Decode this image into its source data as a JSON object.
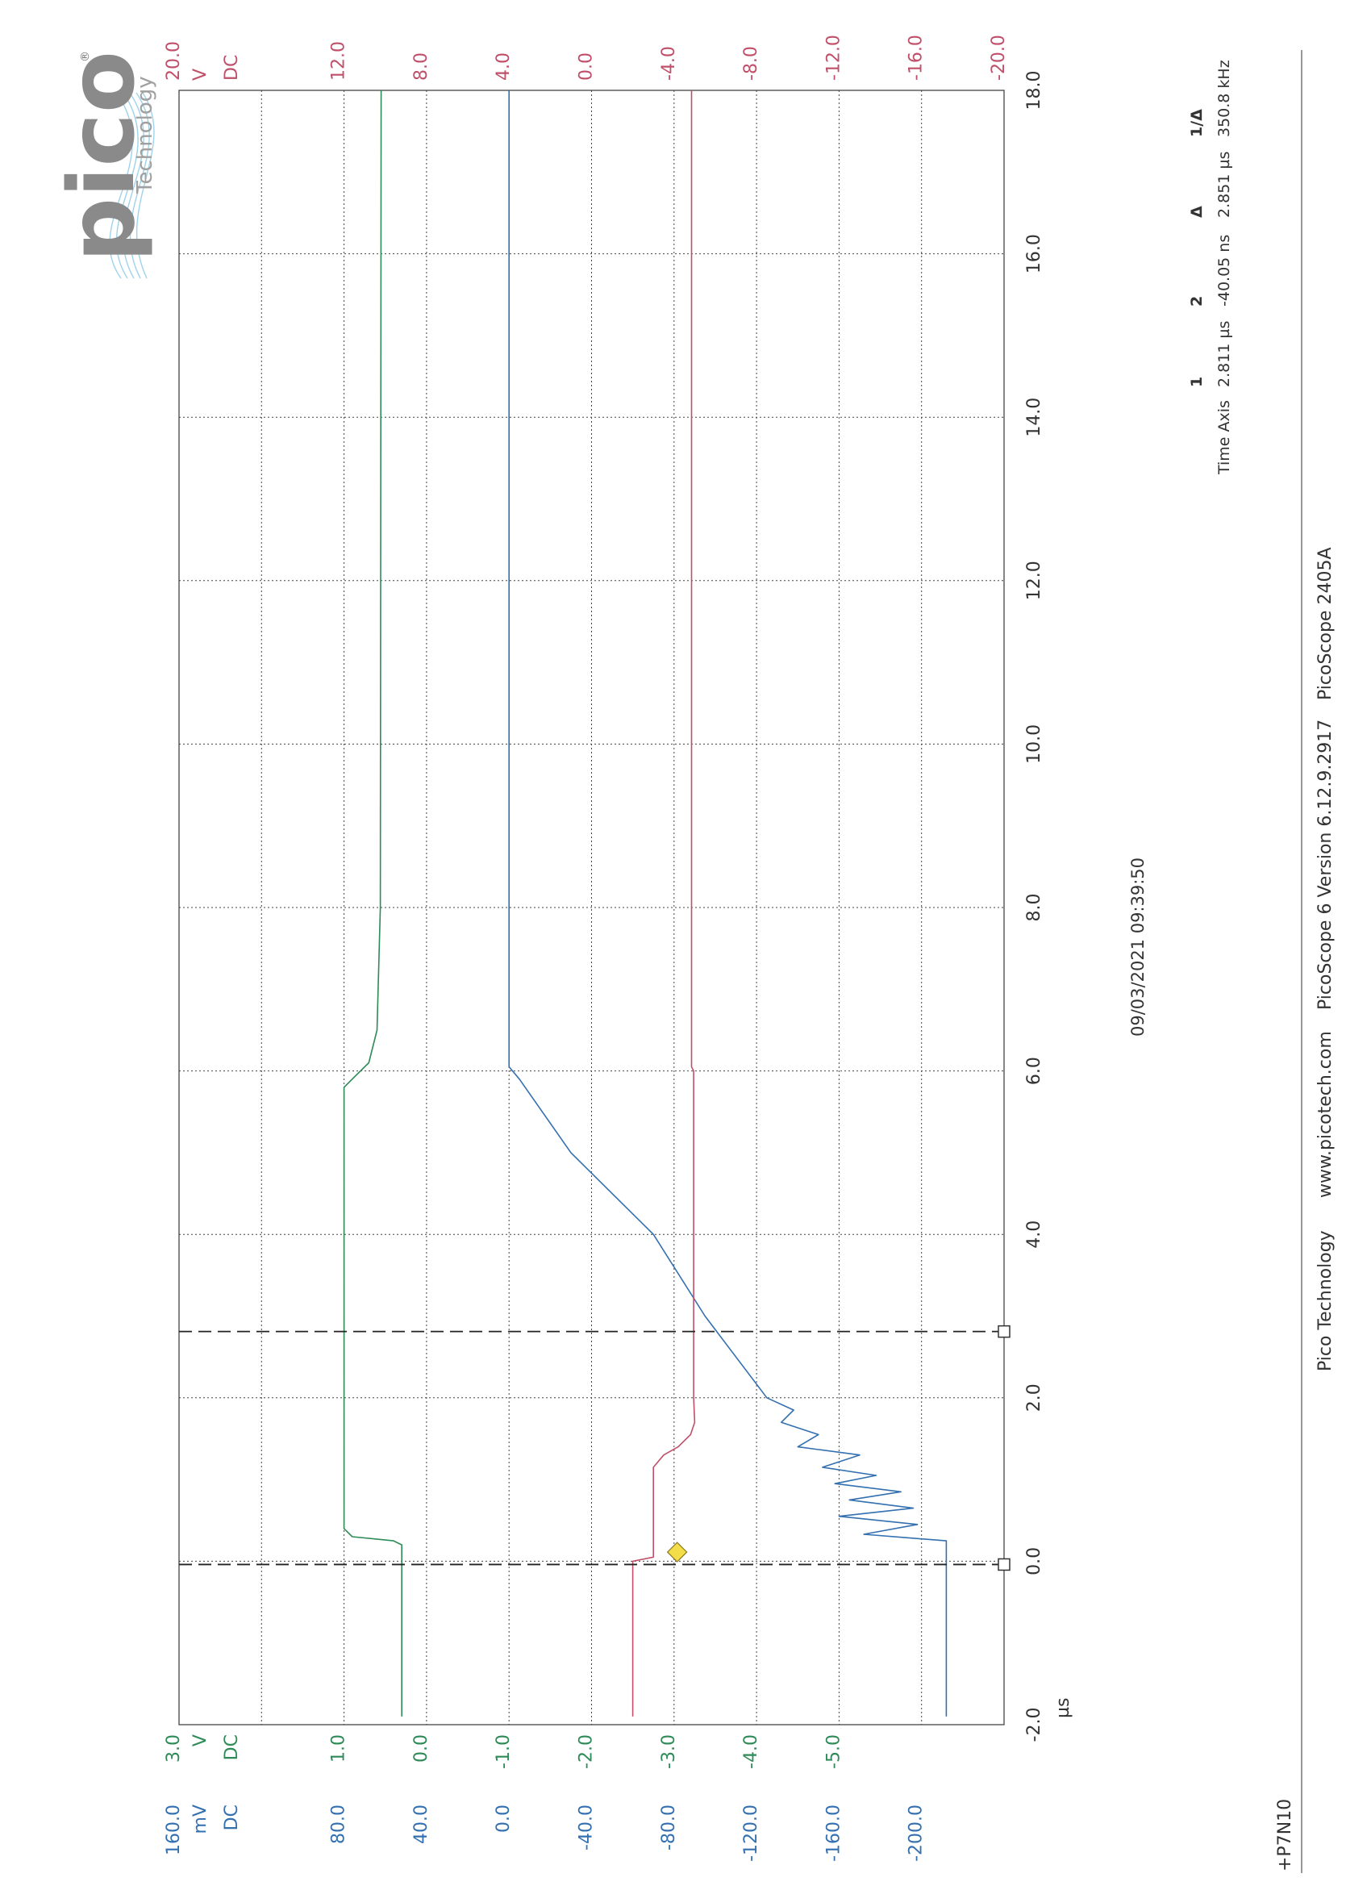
{
  "brand": {
    "logo_text": "pico",
    "logo_sub": "Technology",
    "registered": "®"
  },
  "colors": {
    "green": "#2e8b57",
    "blue": "#3470b0",
    "red": "#c0506a",
    "grid": "#444444",
    "text": "#333333",
    "marker_fill": "#f3dd49"
  },
  "timestamp": "09/03/2021 09:39:50",
  "footer": {
    "company": "Pico Technology",
    "url": "www.picotech.com",
    "version": "PicoScope 6 Version 6.12.9.2917",
    "model": "PicoScope 2405A"
  },
  "page_label": "+P7N10",
  "rulers": {
    "title": "Time Axis",
    "headers": [
      "1",
      "2",
      "Δ",
      "1/Δ"
    ],
    "values": [
      "2.811 µs",
      "-40.05 ns",
      "2.851 µs",
      "350.8 kHz"
    ]
  },
  "chart_data": {
    "type": "line",
    "x": {
      "unit": "µs",
      "range": [
        -2.0,
        18.0
      ],
      "ticks": [
        "-2.0",
        "0.0",
        "2.0",
        "4.0",
        "6.0",
        "8.0",
        "10.0",
        "12.0",
        "14.0",
        "16.0",
        "18.0"
      ]
    },
    "axes": [
      {
        "id": "green",
        "unit": "V",
        "coupling": "DC",
        "range": [
          -7.0,
          3.0
        ],
        "top_label": "3.0",
        "ticks": [
          "1.0",
          "0.0",
          "-1.0",
          "-2.0",
          "-3.0",
          "-4.0",
          "-5.0"
        ]
      },
      {
        "id": "blue",
        "unit": "mV",
        "coupling": "DC",
        "range": [
          -240.0,
          160.0
        ],
        "top_label": "160.0",
        "ticks": [
          "80.0",
          "40.0",
          "0.0",
          "-40.0",
          "-80.0",
          "-120.0",
          "-160.0",
          "-200.0"
        ]
      },
      {
        "id": "red",
        "unit": "V",
        "coupling": "DC",
        "range": [
          -20.0,
          20.0
        ],
        "top_label": "20.0",
        "ticks": [
          "12.0",
          "8.0",
          "4.0",
          "0.0",
          "-4.0",
          "-8.0",
          "-12.0",
          "-16.0",
          "-20.0"
        ]
      }
    ],
    "series": [
      {
        "axis": "green",
        "points": [
          [
            -1.9,
            0.3
          ],
          [
            0.0,
            0.3
          ],
          [
            0.2,
            0.3
          ],
          [
            0.25,
            0.4
          ],
          [
            0.3,
            0.9
          ],
          [
            0.4,
            1.0
          ],
          [
            5.8,
            1.0
          ],
          [
            5.9,
            0.9
          ],
          [
            6.1,
            0.7
          ],
          [
            6.5,
            0.6
          ],
          [
            8.0,
            0.56
          ],
          [
            18.0,
            0.55
          ]
        ]
      },
      {
        "axis": "blue",
        "points": [
          [
            -1.9,
            -212.0
          ],
          [
            0.0,
            -212.0
          ],
          [
            0.25,
            -212.0
          ],
          [
            0.33,
            -172.0
          ],
          [
            0.45,
            -198.0
          ],
          [
            0.55,
            -160.0
          ],
          [
            0.65,
            -196.0
          ],
          [
            0.75,
            -165.0
          ],
          [
            0.85,
            -190.0
          ],
          [
            0.95,
            -158.0
          ],
          [
            1.05,
            -178.0
          ],
          [
            1.15,
            -152.0
          ],
          [
            1.3,
            -170.0
          ],
          [
            1.4,
            -140.0
          ],
          [
            1.55,
            -150.0
          ],
          [
            1.7,
            -132.0
          ],
          [
            1.85,
            -138.0
          ],
          [
            2.0,
            -125.0
          ],
          [
            3.0,
            -95.0
          ],
          [
            4.0,
            -70.0
          ],
          [
            5.0,
            -30.0
          ],
          [
            5.9,
            -5.0
          ],
          [
            6.05,
            0.0
          ],
          [
            18.0,
            0.0
          ]
        ]
      },
      {
        "axis": "red",
        "points": [
          [
            -1.9,
            -2.0
          ],
          [
            0.0,
            -2.0
          ],
          [
            0.05,
            -3.0
          ],
          [
            1.15,
            -3.0
          ],
          [
            1.3,
            -3.5
          ],
          [
            1.4,
            -4.2
          ],
          [
            1.55,
            -4.8
          ],
          [
            1.7,
            -5.0
          ],
          [
            2.0,
            -4.95
          ],
          [
            6.0,
            -4.95
          ],
          [
            6.05,
            -4.85
          ],
          [
            18.0,
            -4.85
          ]
        ]
      }
    ],
    "rulers_x": [
      2.811,
      -0.04005
    ],
    "trigger": {
      "x": 0.25,
      "y_red": -2.0
    }
  }
}
